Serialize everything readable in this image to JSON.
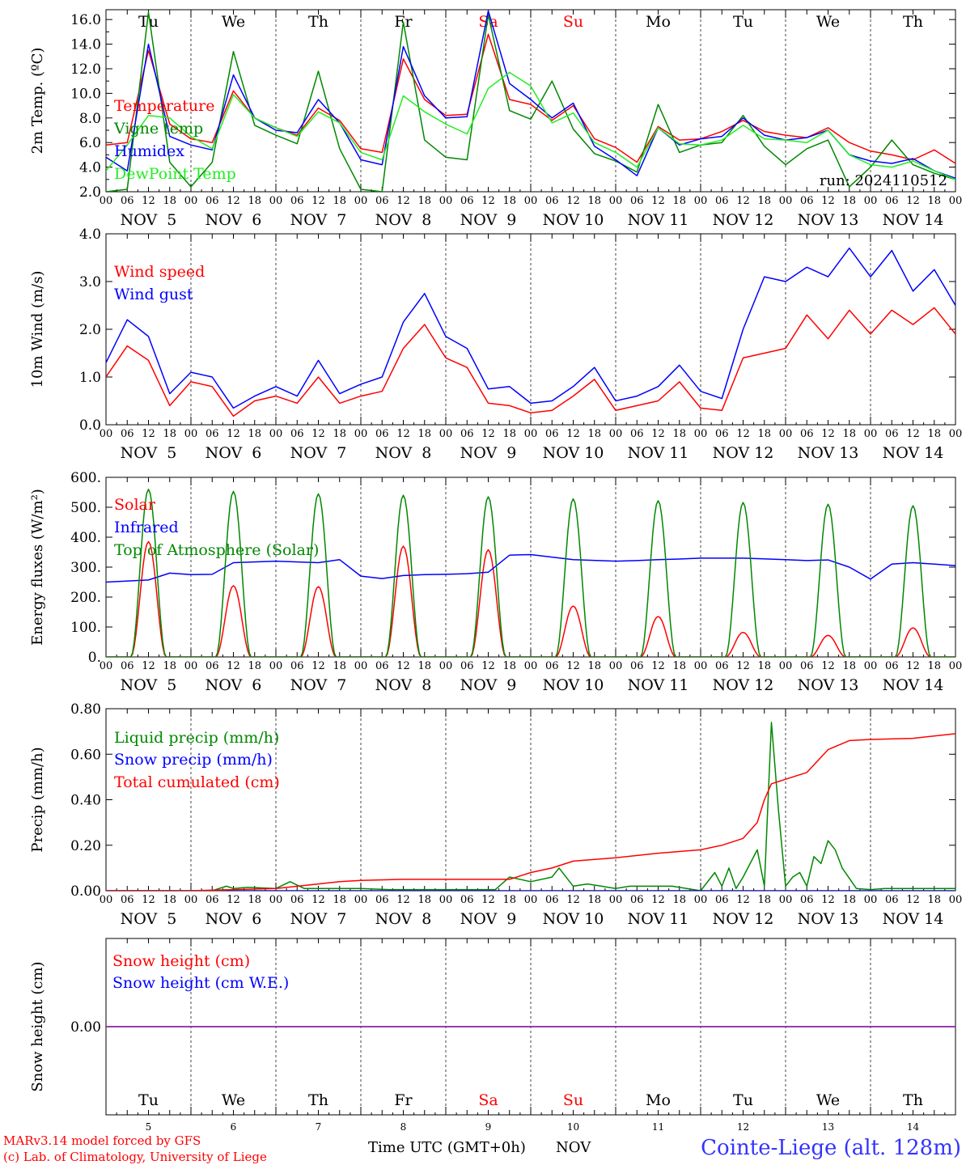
{
  "colors": {
    "red": "#ff0000",
    "green": "#008800",
    "blue": "#0000ff",
    "light_green": "#22ee22",
    "purple": "#8822aa",
    "grid": "#000000",
    "weekend": "#ff0000",
    "station": "#3333ff"
  },
  "days": [
    {
      "abbr": "Tu",
      "date": "NOV  5",
      "num": "5",
      "weekend": false
    },
    {
      "abbr": "We",
      "date": "NOV  6",
      "num": "6",
      "weekend": false
    },
    {
      "abbr": "Th",
      "date": "NOV  7",
      "num": "7",
      "weekend": false
    },
    {
      "abbr": "Fr",
      "date": "NOV  8",
      "num": "8",
      "weekend": false
    },
    {
      "abbr": "Sa",
      "date": "NOV  9",
      "num": "9",
      "weekend": true
    },
    {
      "abbr": "Su",
      "date": "NOV 10",
      "num": "10",
      "weekend": true
    },
    {
      "abbr": "Mo",
      "date": "NOV 11",
      "num": "11",
      "weekend": false
    },
    {
      "abbr": "Tu",
      "date": "NOV 12",
      "num": "12",
      "weekend": false
    },
    {
      "abbr": "We",
      "date": "NOV 13",
      "num": "13",
      "weekend": false
    },
    {
      "abbr": "Th",
      "date": "NOV 14",
      "num": "14",
      "weekend": false
    }
  ],
  "hour_ticks": [
    "00",
    "06",
    "12",
    "18"
  ],
  "footer": {
    "model_line": "MARv3.14 model forced by GFS",
    "copyright_line": "(c) Lab. of Climatology, University of Liege",
    "xaxis_label": "Time UTC (GMT+0h)",
    "month": "NOV",
    "station": "Cointe-Liege (alt. 128m)"
  },
  "chart_data": [
    {
      "type": "line",
      "id": "temperature",
      "ylabel": "2m Temp. (ºC)",
      "ylim": [
        2.0,
        16.8
      ],
      "yticks": [
        "2.0",
        "4.0",
        "6.0",
        "8.0",
        "10.0",
        "12.0",
        "14.0",
        "16.0"
      ],
      "ytick_values": [
        2,
        4,
        6,
        8,
        10,
        12,
        14,
        16
      ],
      "show_day_names": true,
      "annotation": "run: 2024110512",
      "x": [
        0,
        6,
        12,
        18,
        24,
        30,
        36,
        42,
        48,
        54,
        60,
        66,
        72,
        78,
        84,
        90,
        96,
        102,
        108,
        114,
        120,
        126,
        132,
        138,
        144,
        150,
        156,
        162,
        168,
        174,
        180,
        186,
        192,
        198,
        204,
        210,
        216,
        222,
        228,
        234,
        240
      ],
      "series": [
        {
          "name": "Temperature",
          "color": "red",
          "values": [
            5.8,
            6.0,
            13.5,
            7.5,
            6.3,
            6.0,
            10.2,
            8.0,
            7.2,
            6.6,
            8.8,
            7.8,
            5.5,
            5.2,
            12.8,
            9.5,
            8.2,
            8.3,
            14.8,
            9.5,
            9.1,
            7.8,
            9.0,
            6.3,
            5.6,
            4.4,
            7.3,
            6.2,
            6.3,
            6.9,
            7.8,
            6.9,
            6.6,
            6.4,
            7.2,
            6.0,
            5.3,
            5.0,
            4.6,
            5.4,
            4.3
          ]
        },
        {
          "name": "Vigne temp",
          "color": "green",
          "values": [
            2.0,
            2.2,
            16.6,
            4.4,
            2.4,
            4.4,
            13.4,
            7.4,
            6.6,
            5.9,
            11.8,
            5.5,
            2.2,
            2.0,
            15.8,
            6.2,
            4.8,
            4.6,
            16.4,
            8.6,
            7.9,
            11.0,
            7.1,
            5.1,
            4.5,
            3.6,
            9.1,
            5.2,
            5.8,
            6.0,
            8.2,
            5.7,
            4.2,
            5.5,
            6.2,
            2.4,
            4.0,
            6.2,
            4.2,
            3.5,
            3.0
          ]
        },
        {
          "name": "Humidex",
          "color": "blue",
          "values": [
            4.8,
            3.7,
            14.0,
            6.5,
            5.8,
            5.4,
            11.5,
            8.0,
            7.0,
            6.8,
            9.5,
            7.6,
            4.6,
            4.2,
            13.8,
            9.8,
            8.0,
            8.1,
            16.7,
            10.8,
            9.5,
            8.0,
            9.2,
            5.7,
            4.6,
            3.3,
            7.2,
            5.8,
            6.3,
            6.5,
            8.0,
            6.6,
            6.2,
            6.4,
            7.0,
            5.0,
            4.5,
            4.3,
            4.7,
            3.7,
            3.1
          ]
        },
        {
          "name": "DewPoint Temp",
          "color": "light_green",
          "values": [
            3.7,
            5.8,
            8.2,
            8.0,
            6.5,
            5.5,
            9.9,
            8.0,
            7.2,
            6.5,
            8.5,
            7.6,
            5.2,
            4.6,
            9.8,
            8.5,
            7.5,
            6.7,
            10.4,
            11.7,
            10.6,
            7.6,
            8.4,
            6.0,
            5.2,
            4.0,
            7.2,
            5.9,
            5.8,
            6.2,
            7.4,
            6.3,
            6.2,
            6.0,
            7.0,
            5.0,
            4.2,
            4.0,
            4.5,
            3.7,
            3.0
          ]
        }
      ]
    },
    {
      "type": "line",
      "id": "wind",
      "ylabel": "10m Wind (m/s)",
      "ylim": [
        0.0,
        4.0
      ],
      "yticks": [
        "0.0",
        "1.0",
        "2.0",
        "3.0",
        "4.0"
      ],
      "ytick_values": [
        0,
        1,
        2,
        3,
        4
      ],
      "show_day_names": false,
      "x": [
        0,
        6,
        12,
        18,
        24,
        30,
        36,
        42,
        48,
        54,
        60,
        66,
        72,
        78,
        84,
        90,
        96,
        102,
        108,
        114,
        120,
        126,
        132,
        138,
        144,
        150,
        156,
        162,
        168,
        174,
        180,
        186,
        192,
        198,
        204,
        210,
        216,
        222,
        228,
        234,
        240
      ],
      "series": [
        {
          "name": "Wind speed",
          "color": "red",
          "values": [
            1.0,
            1.65,
            1.35,
            0.4,
            0.9,
            0.8,
            0.18,
            0.5,
            0.6,
            0.45,
            1.0,
            0.45,
            0.6,
            0.7,
            1.6,
            2.1,
            1.4,
            1.2,
            0.45,
            0.4,
            0.25,
            0.3,
            0.6,
            0.95,
            0.3,
            0.4,
            0.5,
            0.9,
            0.35,
            0.3,
            1.4,
            1.5,
            1.6,
            2.3,
            1.8,
            2.4,
            1.9,
            2.4,
            2.1,
            2.45,
            1.9
          ]
        },
        {
          "name": "Wind gust",
          "color": "blue",
          "values": [
            1.3,
            2.2,
            1.85,
            0.65,
            1.1,
            1.0,
            0.35,
            0.6,
            0.8,
            0.6,
            1.35,
            0.65,
            0.85,
            1.0,
            2.15,
            2.75,
            1.85,
            1.6,
            0.75,
            0.8,
            0.45,
            0.5,
            0.8,
            1.2,
            0.5,
            0.6,
            0.8,
            1.25,
            0.7,
            0.55,
            2.0,
            3.1,
            3.0,
            3.3,
            3.1,
            3.7,
            3.1,
            3.65,
            2.8,
            3.25,
            2.5
          ]
        }
      ]
    },
    {
      "type": "line",
      "id": "energy",
      "ylabel": "Energy fluxes (W/m²)",
      "ylim": [
        0,
        600
      ],
      "yticks": [
        "0.",
        "100.",
        "200.",
        "300.",
        "400.",
        "500.",
        "600."
      ],
      "ytick_values": [
        0,
        100,
        200,
        300,
        400,
        500,
        600
      ],
      "show_day_names": false,
      "daily_peaks": {
        "hours": [
          12,
          36,
          60,
          84,
          108,
          132,
          156,
          180,
          204,
          228
        ],
        "solar": [
          385,
          238,
          235,
          370,
          358,
          170,
          135,
          82,
          72,
          97
        ],
        "toa": [
          560,
          553,
          545,
          540,
          535,
          528,
          522,
          516,
          510,
          505
        ],
        "solar_halfwidth_h": 5,
        "toa_halfwidth_h": 5
      },
      "series": [
        {
          "name": "Solar",
          "color": "red",
          "x": [],
          "values": []
        },
        {
          "name": "Infrared",
          "color": "blue",
          "x": [
            0,
            12,
            18,
            24,
            30,
            36,
            48,
            60,
            66,
            72,
            78,
            84,
            90,
            96,
            102,
            108,
            114,
            120,
            132,
            144,
            150,
            156,
            162,
            168,
            180,
            192,
            198,
            204,
            210,
            216,
            222,
            228,
            234,
            240
          ],
          "values": [
            250,
            257,
            280,
            275,
            276,
            315,
            320,
            315,
            325,
            270,
            262,
            272,
            275,
            276,
            278,
            283,
            340,
            342,
            325,
            320,
            322,
            325,
            327,
            330,
            330,
            325,
            322,
            324,
            300,
            260,
            310,
            315,
            310,
            305
          ]
        },
        {
          "name": "Top of Atmosphere (Solar)",
          "color": "green",
          "x": [],
          "values": []
        }
      ]
    },
    {
      "type": "line",
      "id": "precip",
      "ylabel": "Precip (mm/h)",
      "ylim": [
        0.0,
        0.8
      ],
      "yticks": [
        "0.00",
        "0.20",
        "0.40",
        "0.60",
        "0.80"
      ],
      "ytick_values": [
        0,
        0.2,
        0.4,
        0.6,
        0.8
      ],
      "show_day_names": false,
      "series": [
        {
          "name": "Liquid precip (mm/h)",
          "color": "green",
          "x": [
            0,
            30,
            34,
            36,
            40,
            48,
            52,
            56,
            64,
            72,
            80,
            96,
            110,
            114,
            120,
            126,
            128,
            132,
            136,
            140,
            144,
            148,
            152,
            160,
            168,
            172,
            174,
            176,
            178,
            180,
            184,
            186,
            188,
            190,
            192,
            194,
            196,
            198,
            200,
            202,
            204,
            206,
            208,
            212,
            216,
            220,
            228,
            240
          ],
          "values": [
            0,
            0,
            0.02,
            0.01,
            0.015,
            0.01,
            0.04,
            0.01,
            0.01,
            0.01,
            0.005,
            0.005,
            0.005,
            0.06,
            0.04,
            0.06,
            0.1,
            0.02,
            0.03,
            0.02,
            0.01,
            0.02,
            0.02,
            0.02,
            0,
            0.08,
            0.02,
            0.1,
            0.01,
            0.06,
            0.18,
            0.02,
            0.74,
            0.35,
            0.02,
            0.06,
            0.08,
            0.02,
            0.15,
            0.12,
            0.22,
            0.18,
            0.1,
            0.01,
            0.005,
            0.01,
            0.01,
            0.01
          ]
        },
        {
          "name": "Snow precip (mm/h)",
          "color": "blue",
          "x": [
            0,
            240
          ],
          "values": [
            0,
            0
          ]
        },
        {
          "name": "Total cumulated (cm)",
          "color": "red",
          "x": [
            0,
            24,
            36,
            48,
            60,
            66,
            72,
            84,
            96,
            108,
            114,
            120,
            126,
            132,
            144,
            156,
            168,
            174,
            180,
            184,
            186,
            188,
            190,
            192,
            198,
            204,
            210,
            216,
            228,
            240
          ],
          "values": [
            0,
            0,
            0.005,
            0.01,
            0.03,
            0.04,
            0.045,
            0.05,
            0.05,
            0.05,
            0.05,
            0.08,
            0.1,
            0.13,
            0.145,
            0.165,
            0.18,
            0.2,
            0.23,
            0.3,
            0.4,
            0.47,
            0.48,
            0.49,
            0.52,
            0.62,
            0.66,
            0.665,
            0.67,
            0.69
          ]
        }
      ]
    },
    {
      "type": "line",
      "id": "snow",
      "ylabel": "Snow height (cm)",
      "ylim": [
        -1,
        1
      ],
      "yticks": [
        "0.00"
      ],
      "ytick_values": [
        0
      ],
      "show_day_names": "bottom",
      "series": [
        {
          "name": "Snow height (cm)",
          "color": "red",
          "x": [
            0,
            240
          ],
          "values": [
            0,
            0
          ]
        },
        {
          "name": "Snow height (cm W.E.)",
          "color": "blue",
          "x": [
            0,
            240
          ],
          "values": [
            0,
            0
          ]
        }
      ]
    }
  ]
}
